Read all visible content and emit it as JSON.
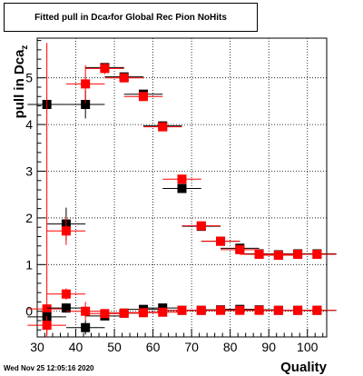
{
  "title": {
    "main": "Fitted pull in Dca",
    "sub": "z",
    "rest": " for Global Rec Pion NoHits"
  },
  "ylabel": {
    "main": "pull in Dca",
    "sub": "z"
  },
  "xlabel": "Quality",
  "timestamp": "Wed Nov 25 12:05:16 2020",
  "chart_data": {
    "type": "scatter",
    "xlim": [
      30,
      105
    ],
    "ylim": [
      -0.55,
      5.85
    ],
    "x_ticks": [
      30,
      40,
      50,
      60,
      70,
      80,
      90,
      100
    ],
    "y_ticks": [
      0,
      1,
      2,
      3,
      4,
      5
    ],
    "grid": true,
    "series": [
      {
        "color": "#000000",
        "points": [
          {
            "x": 32.5,
            "y": 4.43,
            "yerr": 0.05
          },
          {
            "x": 37.5,
            "y": 1.87,
            "yerr": 0.35
          },
          {
            "x": 42.5,
            "y": 4.43,
            "yerr": 0.3
          },
          {
            "x": 47.5,
            "y": 5.22,
            "yerr": 0.08
          },
          {
            "x": 52.5,
            "y": 5.02,
            "yerr": 0.05
          },
          {
            "x": 57.5,
            "y": 4.65,
            "yerr": 0.05
          },
          {
            "x": 62.5,
            "y": 3.97,
            "yerr": 0.04
          },
          {
            "x": 67.5,
            "y": 2.63,
            "yerr": 0.04
          },
          {
            "x": 72.5,
            "y": 1.82,
            "yerr": 0.03
          },
          {
            "x": 77.5,
            "y": 1.5,
            "yerr": 0.02
          },
          {
            "x": 82.5,
            "y": 1.35,
            "yerr": 0.02
          },
          {
            "x": 87.5,
            "y": 1.23,
            "yerr": 0.02
          },
          {
            "x": 92.5,
            "y": 1.21,
            "yerr": 0.02
          },
          {
            "x": 97.5,
            "y": 1.23,
            "yerr": 0.02
          },
          {
            "x": 102.5,
            "y": 1.23,
            "yerr": 0.02
          }
        ]
      },
      {
        "color": "#ff0000",
        "points": [
          {
            "x": 32.5,
            "y": 0.05,
            "yerr": 5.7
          },
          {
            "x": 37.5,
            "y": 1.72,
            "yerr": 0.3
          },
          {
            "x": 42.5,
            "y": 4.87,
            "yerr": 0.4
          },
          {
            "x": 47.5,
            "y": 5.2,
            "yerr": 0.12
          },
          {
            "x": 52.5,
            "y": 5.0,
            "yerr": 0.06
          },
          {
            "x": 57.5,
            "y": 4.6,
            "yerr": 0.06
          },
          {
            "x": 62.5,
            "y": 3.95,
            "yerr": 0.05
          },
          {
            "x": 67.5,
            "y": 2.83,
            "yerr": 0.05
          },
          {
            "x": 72.5,
            "y": 1.83,
            "yerr": 0.03
          },
          {
            "x": 77.5,
            "y": 1.5,
            "yerr": 0.02
          },
          {
            "x": 82.5,
            "y": 1.32,
            "yerr": 0.02
          },
          {
            "x": 87.5,
            "y": 1.22,
            "yerr": 0.02
          },
          {
            "x": 92.5,
            "y": 1.2,
            "yerr": 0.02
          },
          {
            "x": 97.5,
            "y": 1.22,
            "yerr": 0.02
          },
          {
            "x": 102.5,
            "y": 1.22,
            "yerr": 0.02
          }
        ]
      },
      {
        "color": "#000000",
        "points": [
          {
            "x": 32.5,
            "y": -0.12,
            "yerr": 0.1
          },
          {
            "x": 37.5,
            "y": 0.07,
            "yerr": 0.1
          },
          {
            "x": 42.5,
            "y": -0.35,
            "yerr": 0.15
          },
          {
            "x": 47.5,
            "y": -0.1,
            "yerr": 0.06
          },
          {
            "x": 52.5,
            "y": -0.04,
            "yerr": 0.04
          },
          {
            "x": 57.5,
            "y": 0.04,
            "yerr": 0.03
          },
          {
            "x": 62.5,
            "y": 0.07,
            "yerr": 0.03
          },
          {
            "x": 67.5,
            "y": 0.02,
            "yerr": 0.02
          },
          {
            "x": 72.5,
            "y": 0.02,
            "yerr": 0.02
          },
          {
            "x": 77.5,
            "y": 0.03,
            "yerr": 0.02
          },
          {
            "x": 82.5,
            "y": 0.04,
            "yerr": 0.02
          },
          {
            "x": 87.5,
            "y": 0.03,
            "yerr": 0.02
          },
          {
            "x": 92.5,
            "y": 0.02,
            "yerr": 0.02
          },
          {
            "x": 97.5,
            "y": 0.02,
            "yerr": 0.02
          },
          {
            "x": 102.5,
            "y": 0.02,
            "yerr": 0.02
          }
        ]
      },
      {
        "color": "#ff0000",
        "points": [
          {
            "x": 32.5,
            "y": -0.3,
            "yerr": 0.2
          },
          {
            "x": 37.5,
            "y": 0.37,
            "yerr": 0.12
          },
          {
            "x": 42.5,
            "y": 0.0,
            "yerr": 0.2
          },
          {
            "x": 47.5,
            "y": -0.05,
            "yerr": 0.06
          },
          {
            "x": 52.5,
            "y": -0.04,
            "yerr": 0.04
          },
          {
            "x": 57.5,
            "y": -0.03,
            "yerr": 0.03
          },
          {
            "x": 62.5,
            "y": -0.02,
            "yerr": 0.03
          },
          {
            "x": 67.5,
            "y": 0.02,
            "yerr": 0.02
          },
          {
            "x": 72.5,
            "y": 0.02,
            "yerr": 0.02
          },
          {
            "x": 77.5,
            "y": 0.02,
            "yerr": 0.02
          },
          {
            "x": 82.5,
            "y": 0.02,
            "yerr": 0.02
          },
          {
            "x": 87.5,
            "y": 0.02,
            "yerr": 0.02
          },
          {
            "x": 92.5,
            "y": 0.02,
            "yerr": 0.02
          },
          {
            "x": 97.5,
            "y": 0.02,
            "yerr": 0.02
          },
          {
            "x": 102.5,
            "y": 0.02,
            "yerr": 0.02
          }
        ]
      }
    ]
  }
}
